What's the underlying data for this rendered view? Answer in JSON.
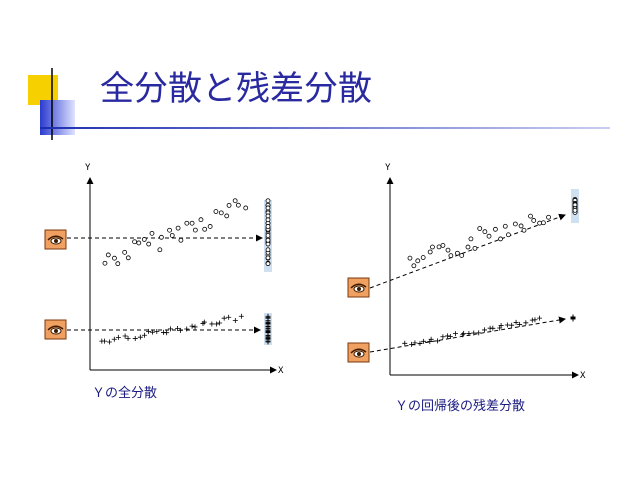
{
  "header": {
    "title": "全分散と残差分散"
  },
  "panels": [
    {
      "y_label": "Y",
      "x_label": "X",
      "caption": "Ｙの全分散"
    },
    {
      "y_label": "Y",
      "x_label": "X",
      "caption": "Ｙの回帰後の残差分散"
    }
  ]
}
